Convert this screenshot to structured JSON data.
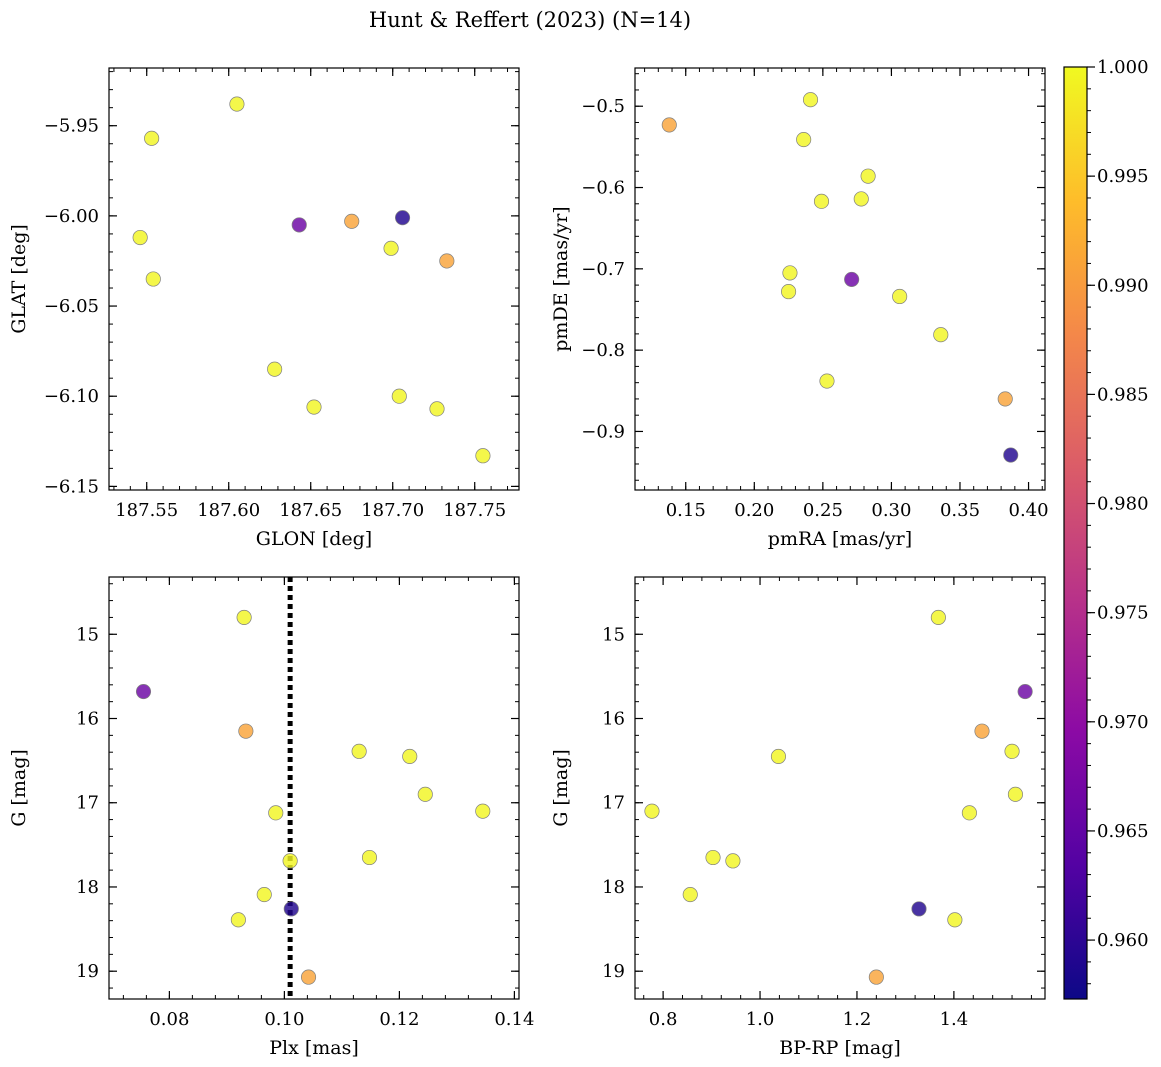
{
  "figure_title": "Hunt & Reffert (2023) (N=14)",
  "colormap": {
    "name": "plasma",
    "min": 0.9573,
    "max": 1.0,
    "ticks": [
      0.96,
      0.965,
      0.97,
      0.975,
      0.98,
      0.985,
      0.99,
      0.995,
      1.0
    ],
    "tick_labels": [
      "0.960",
      "0.965",
      "0.970",
      "0.975",
      "0.980",
      "0.985",
      "0.990",
      "0.995",
      "1.000"
    ],
    "stops": [
      "#0d0887",
      "#5302a3",
      "#8b0aa5",
      "#b83289",
      "#db5c68",
      "#f48849",
      "#febd2a",
      "#f0f921"
    ]
  },
  "chart_data": [
    {
      "type": "scatter",
      "id": "glon-glat",
      "xlabel": "GLON [deg]",
      "ylabel": "GLAT [deg]",
      "xlim": [
        187.527,
        187.777
      ],
      "ylim": [
        -6.152,
        -5.918
      ],
      "y_inverted": false,
      "xticks": [
        187.55,
        187.6,
        187.65,
        187.7,
        187.75
      ],
      "xtick_labels": [
        "187.55",
        "187.60",
        "187.65",
        "187.70",
        "187.75"
      ],
      "yticks": [
        -5.95,
        -6.0,
        -6.05,
        -6.1,
        -6.15
      ],
      "ytick_labels": [
        "−5.95",
        "−6.00",
        "−6.05",
        "−6.10",
        "−6.15"
      ],
      "points": [
        {
          "x": 187.546,
          "y": -6.012,
          "c": 0.9996
        },
        {
          "x": 187.553,
          "y": -5.957,
          "c": 0.9996
        },
        {
          "x": 187.554,
          "y": -6.035,
          "c": 0.9996
        },
        {
          "x": 187.605,
          "y": -5.938,
          "c": 0.9996
        },
        {
          "x": 187.628,
          "y": -6.085,
          "c": 0.9996
        },
        {
          "x": 187.643,
          "y": -6.005,
          "c": 0.966
        },
        {
          "x": 187.652,
          "y": -6.106,
          "c": 0.9996
        },
        {
          "x": 187.675,
          "y": -6.003,
          "c": 0.991
        },
        {
          "x": 187.699,
          "y": -6.018,
          "c": 0.9996
        },
        {
          "x": 187.704,
          "y": -6.1,
          "c": 0.9996
        },
        {
          "x": 187.706,
          "y": -6.001,
          "c": 0.959
        },
        {
          "x": 187.727,
          "y": -6.107,
          "c": 0.9996
        },
        {
          "x": 187.733,
          "y": -6.025,
          "c": 0.991
        },
        {
          "x": 187.755,
          "y": -6.133,
          "c": 0.9996
        }
      ]
    },
    {
      "type": "scatter",
      "id": "pmra-pmde",
      "xlabel": "pmRA [mas/yr]",
      "ylabel": "pmDE [mas/yr]",
      "xlim": [
        0.113,
        0.412
      ],
      "ylim": [
        -0.972,
        -0.453
      ],
      "y_inverted": false,
      "xticks": [
        0.15,
        0.2,
        0.25,
        0.3,
        0.35,
        0.4
      ],
      "xtick_labels": [
        "0.15",
        "0.20",
        "0.25",
        "0.30",
        "0.35",
        "0.40"
      ],
      "yticks": [
        -0.5,
        -0.6,
        -0.7,
        -0.8,
        -0.9
      ],
      "ytick_labels": [
        "−0.5",
        "−0.6",
        "−0.7",
        "−0.8",
        "−0.9"
      ],
      "points": [
        {
          "x": 0.138,
          "y": -0.523,
          "c": 0.991
        },
        {
          "x": 0.241,
          "y": -0.492,
          "c": 0.9996
        },
        {
          "x": 0.236,
          "y": -0.541,
          "c": 0.9996
        },
        {
          "x": 0.283,
          "y": -0.586,
          "c": 0.9996
        },
        {
          "x": 0.249,
          "y": -0.617,
          "c": 0.9996
        },
        {
          "x": 0.278,
          "y": -0.614,
          "c": 0.9996
        },
        {
          "x": 0.226,
          "y": -0.705,
          "c": 0.9996
        },
        {
          "x": 0.225,
          "y": -0.728,
          "c": 0.9996
        },
        {
          "x": 0.271,
          "y": -0.713,
          "c": 0.966
        },
        {
          "x": 0.306,
          "y": -0.734,
          "c": 0.9996
        },
        {
          "x": 0.336,
          "y": -0.781,
          "c": 0.9996
        },
        {
          "x": 0.253,
          "y": -0.838,
          "c": 0.9996
        },
        {
          "x": 0.383,
          "y": -0.86,
          "c": 0.991
        },
        {
          "x": 0.387,
          "y": -0.929,
          "c": 0.959
        }
      ]
    },
    {
      "type": "scatter",
      "id": "plx-g",
      "xlabel": "Plx [mas]",
      "ylabel": "G [mag]",
      "xlim": [
        0.0695,
        0.1408
      ],
      "ylim": [
        14.32,
        19.33
      ],
      "y_inverted": true,
      "vline": {
        "x": 0.101,
        "style": "dotted"
      },
      "xticks": [
        0.08,
        0.1,
        0.12,
        0.14
      ],
      "xtick_labels": [
        "0.08",
        "0.10",
        "0.12",
        "0.14"
      ],
      "yticks": [
        15,
        16,
        17,
        18,
        19
      ],
      "ytick_labels": [
        "15",
        "16",
        "17",
        "18",
        "19"
      ],
      "points": [
        {
          "x": 0.093,
          "y": 14.8,
          "c": 0.9996
        },
        {
          "x": 0.0755,
          "y": 15.68,
          "c": 0.966
        },
        {
          "x": 0.0933,
          "y": 16.15,
          "c": 0.991
        },
        {
          "x": 0.113,
          "y": 16.39,
          "c": 0.9996
        },
        {
          "x": 0.1218,
          "y": 16.45,
          "c": 0.9996
        },
        {
          "x": 0.1245,
          "y": 16.9,
          "c": 0.9996
        },
        {
          "x": 0.1345,
          "y": 17.1,
          "c": 0.9996
        },
        {
          "x": 0.0985,
          "y": 17.12,
          "c": 0.9996
        },
        {
          "x": 0.101,
          "y": 17.69,
          "c": 0.9996
        },
        {
          "x": 0.1148,
          "y": 17.65,
          "c": 0.9996
        },
        {
          "x": 0.0965,
          "y": 18.09,
          "c": 0.9996
        },
        {
          "x": 0.1012,
          "y": 18.26,
          "c": 0.959
        },
        {
          "x": 0.092,
          "y": 18.39,
          "c": 0.9996
        },
        {
          "x": 0.1042,
          "y": 19.07,
          "c": 0.991
        }
      ]
    },
    {
      "type": "scatter",
      "id": "bprp-g",
      "xlabel": "BP-RP [mag]",
      "ylabel": "G [mag]",
      "xlim": [
        0.742,
        1.588
      ],
      "ylim": [
        14.32,
        19.33
      ],
      "y_inverted": true,
      "xticks": [
        0.8,
        1.0,
        1.2,
        1.4
      ],
      "xtick_labels": [
        "0.8",
        "1.0",
        "1.2",
        "1.4"
      ],
      "yticks": [
        15,
        16,
        17,
        18,
        19
      ],
      "ytick_labels": [
        "15",
        "16",
        "17",
        "18",
        "19"
      ],
      "points": [
        {
          "x": 1.368,
          "y": 14.8,
          "c": 0.9996
        },
        {
          "x": 1.547,
          "y": 15.68,
          "c": 0.966
        },
        {
          "x": 1.458,
          "y": 16.15,
          "c": 0.991
        },
        {
          "x": 1.52,
          "y": 16.39,
          "c": 0.9996
        },
        {
          "x": 1.038,
          "y": 16.45,
          "c": 0.9996
        },
        {
          "x": 1.527,
          "y": 16.9,
          "c": 0.9996
        },
        {
          "x": 0.777,
          "y": 17.1,
          "c": 0.9996
        },
        {
          "x": 1.432,
          "y": 17.12,
          "c": 0.9996
        },
        {
          "x": 0.903,
          "y": 17.65,
          "c": 0.9996
        },
        {
          "x": 0.944,
          "y": 17.69,
          "c": 0.9996
        },
        {
          "x": 0.856,
          "y": 18.09,
          "c": 0.9996
        },
        {
          "x": 1.328,
          "y": 18.26,
          "c": 0.959
        },
        {
          "x": 1.402,
          "y": 18.39,
          "c": 0.9996
        },
        {
          "x": 1.24,
          "y": 19.07,
          "c": 0.991
        }
      ]
    }
  ]
}
